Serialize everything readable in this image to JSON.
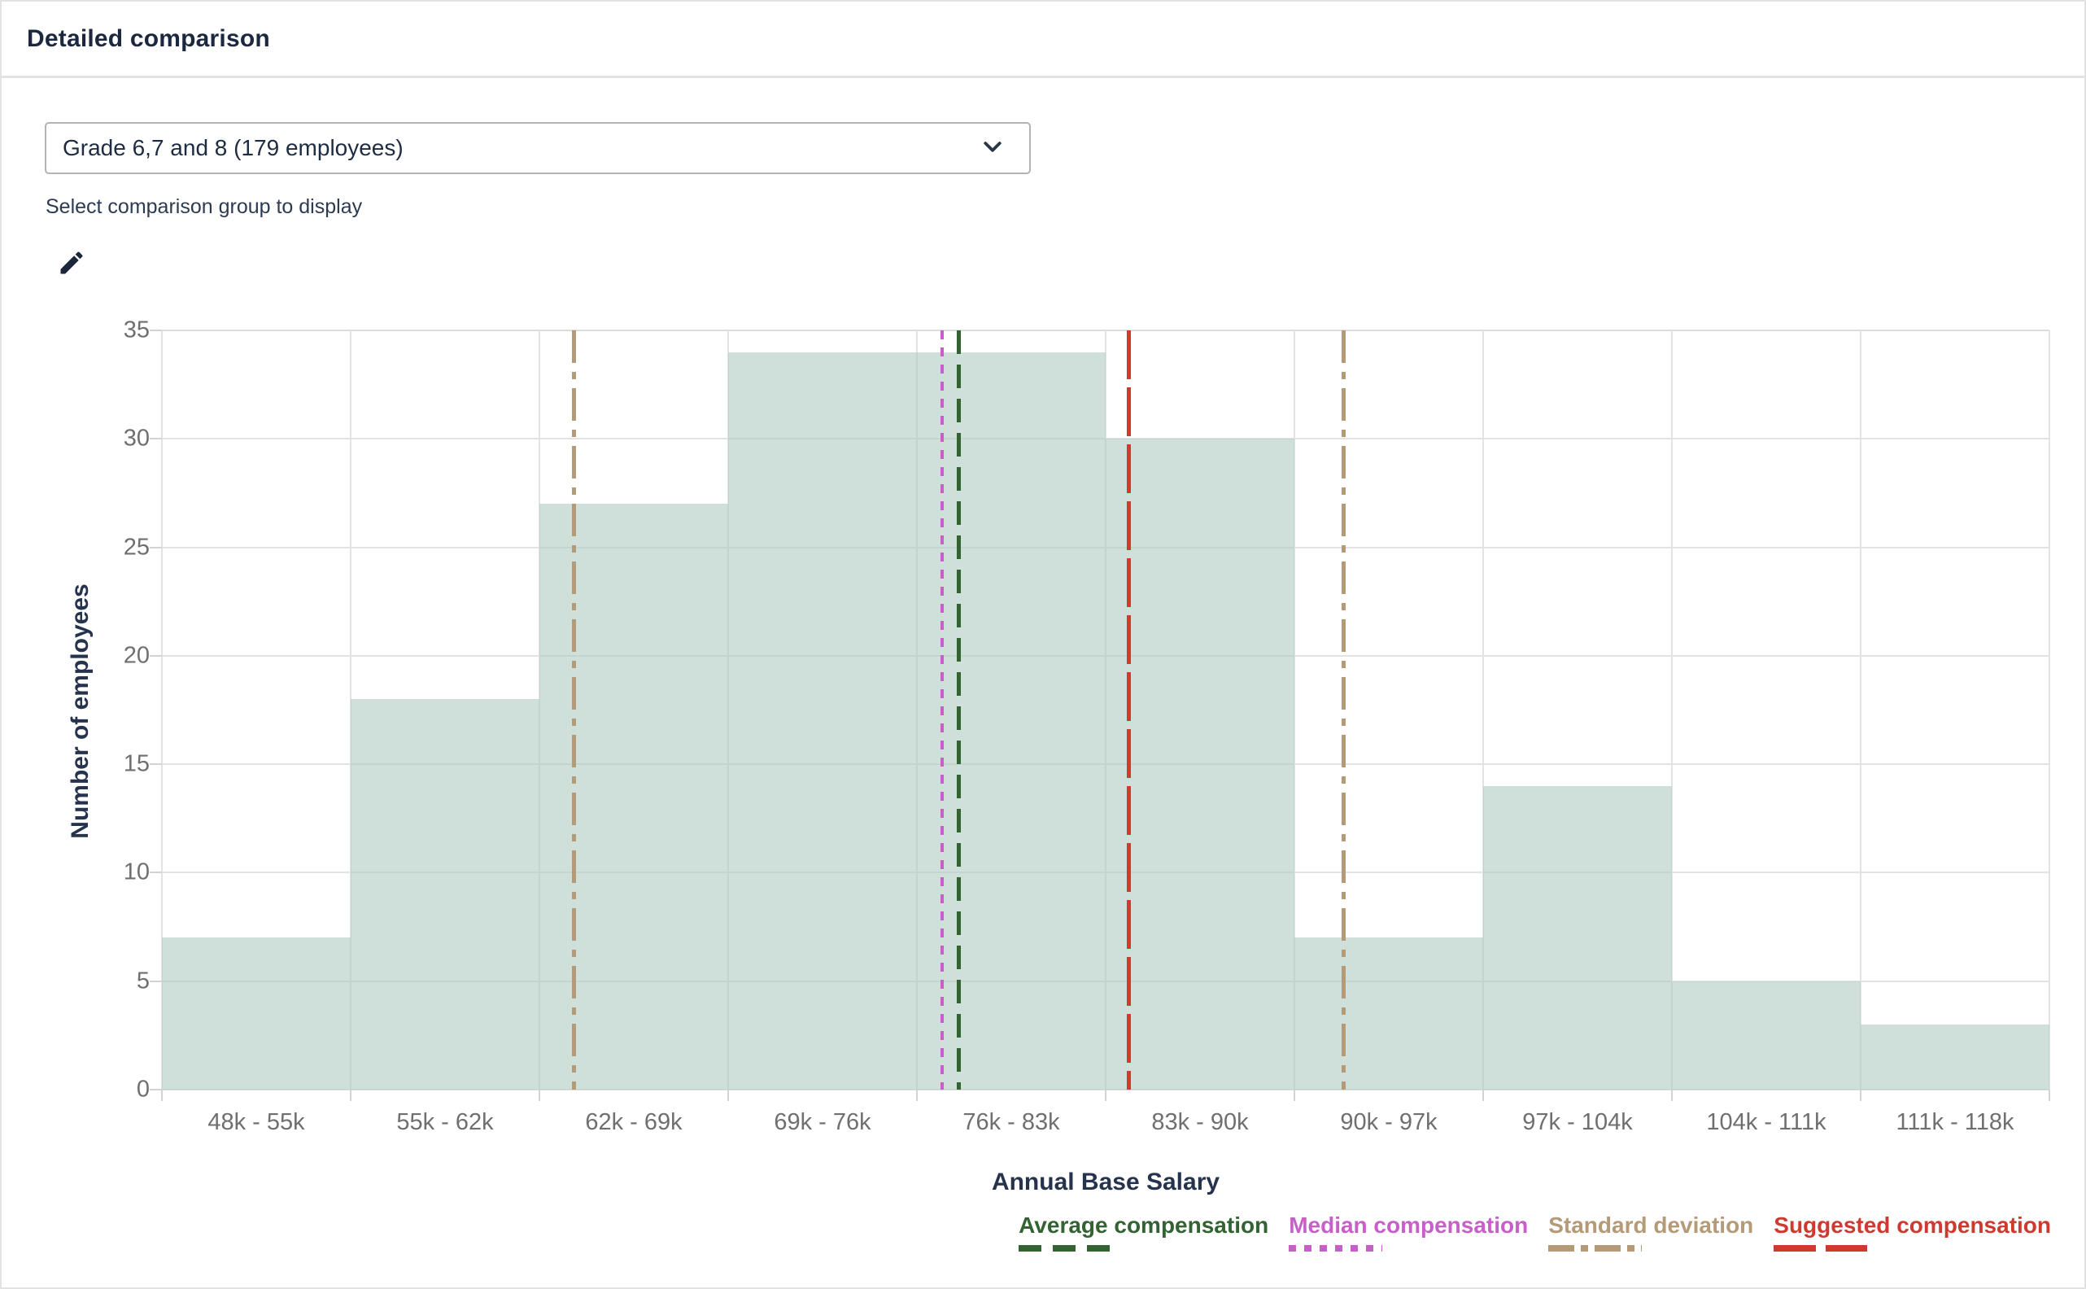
{
  "header": {
    "title": "Detailed comparison"
  },
  "controls": {
    "group_select": {
      "value": "Grade 6,7 and 8 (179 employees)"
    },
    "helper_text": "Select comparison group to display"
  },
  "chart_data": {
    "type": "bar",
    "title": "",
    "categories": [
      "48k - 55k",
      "55k - 62k",
      "62k - 69k",
      "69k - 76k",
      "76k - 83k",
      "83k - 90k",
      "90k - 97k",
      "97k - 104k",
      "104k - 111k",
      "111k - 118k"
    ],
    "values": [
      7,
      18,
      27,
      34,
      34,
      30,
      7,
      14,
      5,
      3
    ],
    "xlabel": "Annual Base Salary",
    "ylabel": "Number of employees",
    "ylim": [
      0,
      35
    ],
    "y_ticks": [
      35,
      30,
      25,
      20,
      15,
      10,
      5,
      0
    ],
    "grid": true,
    "bar_color": "rgba(177,203,194,0.62)",
    "reference_lines": [
      {
        "label": "Standard deviation",
        "style": "dashdot",
        "color": "#b49a77",
        "x_frac": 0.2185
      },
      {
        "label": "Median compensation",
        "style": "dotted",
        "color": "#c75fc9",
        "x_frac": 0.4134
      },
      {
        "label": "Average compensation",
        "style": "dashed",
        "color": "#336233",
        "x_frac": 0.4224
      },
      {
        "label": "Suggested compensation",
        "style": "longdash",
        "color": "#cf3a30",
        "x_frac": 0.5121
      },
      {
        "label": "Standard deviation",
        "style": "dashdot",
        "color": "#b49a77",
        "x_frac": 0.6259
      }
    ],
    "legend": [
      {
        "label": "Average compensation",
        "style": "dashed",
        "color": "#336233"
      },
      {
        "label": "Median compensation",
        "style": "dotted",
        "color": "#c75fc9"
      },
      {
        "label": "Standard deviation",
        "style": "dashdot",
        "color": "#b49a77"
      },
      {
        "label": "Suggested compensation",
        "style": "longdash",
        "color": "#cf3a30"
      }
    ],
    "legend_position": "bottom-right"
  }
}
